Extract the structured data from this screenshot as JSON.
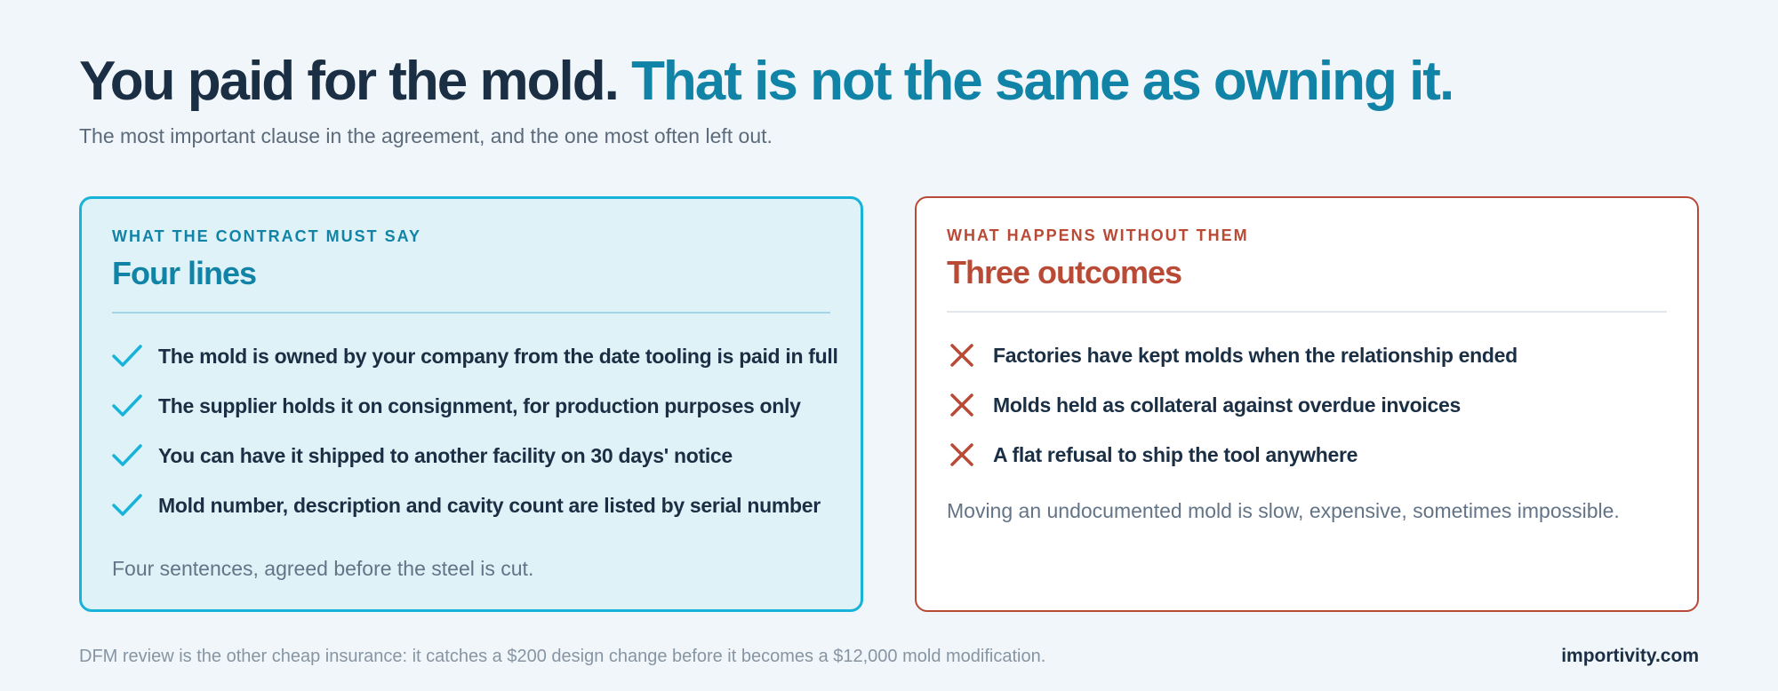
{
  "headline": {
    "part1": "You paid for the mold.",
    "part2": "That is not the same as owning it."
  },
  "subtitle": "The most important clause in the agreement, and the one most often left out.",
  "colors": {
    "dark": "#1a2e44",
    "accent_teal": "#1183a6",
    "accent_red": "#b94a36",
    "check": "#17b3d8",
    "background": "#f0f6fa"
  },
  "left_card": {
    "eyebrow": "WHAT THE CONTRACT MUST SAY",
    "title": "Four lines",
    "icon": "check-icon",
    "items": [
      "The mold is owned by your company from the date tooling is paid in full",
      "The supplier holds it on consignment, for production purposes only",
      "You can have it shipped to another facility on 30 days' notice",
      "Mold number, description and cavity count are listed by serial number"
    ],
    "note": "Four sentences, agreed before the steel is cut."
  },
  "right_card": {
    "eyebrow": "WHAT HAPPENS WITHOUT THEM",
    "title": "Three outcomes",
    "icon": "cross-icon",
    "items": [
      "Factories have kept molds when the relationship ended",
      "Molds held as collateral against overdue invoices",
      "A flat refusal to ship the tool anywhere"
    ],
    "note": "Moving an undocumented mold is slow, expensive, sometimes impossible."
  },
  "footer": {
    "note": "DFM review is the other cheap insurance: it catches a $200 design change before it becomes a $12,000 mold modification.",
    "brand": "importivity.com"
  }
}
